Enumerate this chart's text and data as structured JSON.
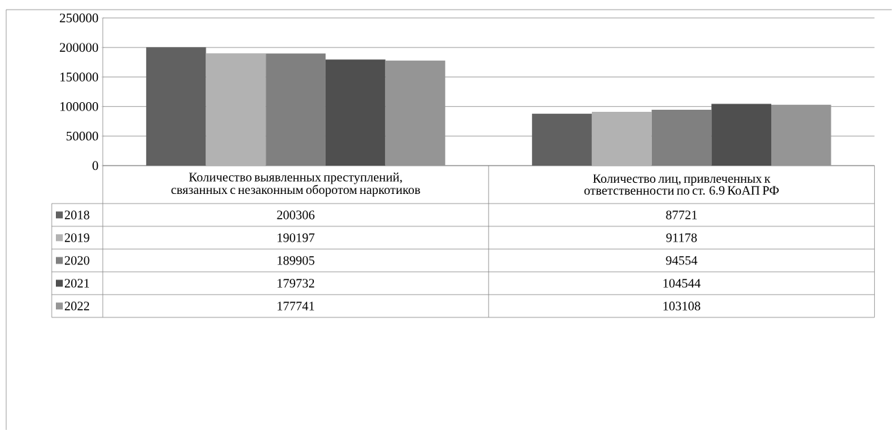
{
  "chart_data": {
    "type": "bar",
    "categories": [
      "Количество выявленных преступлений, связанных с незаконным оборотом наркотиков",
      "Количество лиц, привлеченных к ответственности по ст. 6.9 КоАП РФ"
    ],
    "series": [
      {
        "name": "2018",
        "color": "#616161",
        "values": [
          200306,
          87721
        ]
      },
      {
        "name": "2019",
        "color": "#b2b2b2",
        "values": [
          190197,
          91178
        ]
      },
      {
        "name": "2020",
        "color": "#808080",
        "values": [
          189905,
          94554
        ]
      },
      {
        "name": "2021",
        "color": "#4f4f4f",
        "values": [
          179732,
          104544
        ]
      },
      {
        "name": "2022",
        "color": "#959595",
        "values": [
          177741,
          103108
        ]
      }
    ],
    "ylim": [
      0,
      250000
    ],
    "yticks": [
      0,
      50000,
      100000,
      150000,
      200000,
      250000
    ],
    "grid": "y",
    "legend": "bottom",
    "data_labels": true
  }
}
